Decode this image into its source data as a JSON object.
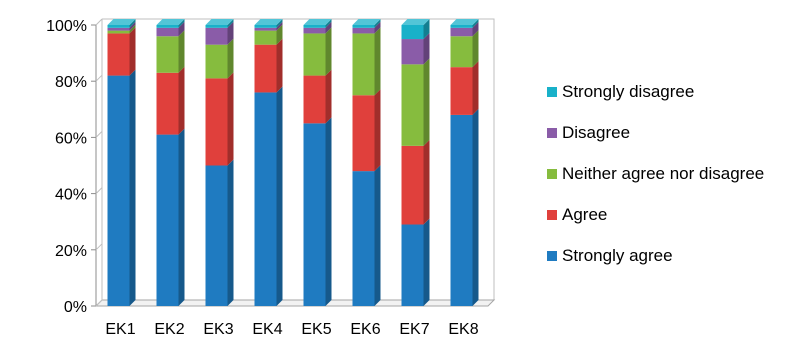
{
  "chart_data": {
    "type": "bar",
    "stacked": true,
    "style": "3d",
    "categories": [
      "EK1",
      "EK2",
      "EK3",
      "EK4",
      "EK5",
      "EK6",
      "EK7",
      "EK8"
    ],
    "series": [
      {
        "name": "Strongly agree",
        "color": "#1f7bc1",
        "values": [
          82,
          61,
          50,
          76,
          65,
          48,
          29,
          68
        ]
      },
      {
        "name": "Agree",
        "color": "#e0403c",
        "values": [
          15,
          22,
          31,
          17,
          17,
          27,
          28,
          17
        ]
      },
      {
        "name": "Neither agree nor disagree",
        "color": "#86bc3e",
        "values": [
          1,
          13,
          12,
          5,
          15,
          22,
          29,
          11
        ]
      },
      {
        "name": "Disagree",
        "color": "#8a5ca8",
        "values": [
          1,
          3,
          6,
          1,
          2,
          2,
          9,
          3
        ]
      },
      {
        "name": "Strongly disagree",
        "color": "#19b1c9",
        "values": [
          1,
          1,
          1,
          1,
          1,
          1,
          5,
          1
        ]
      }
    ],
    "y_ticks": [
      "0%",
      "20%",
      "40%",
      "60%",
      "80%",
      "100%"
    ],
    "ylim": [
      0,
      100
    ],
    "legend_position": "right",
    "legend_order": [
      "Strongly disagree",
      "Disagree",
      "Neither agree nor disagree",
      "Agree",
      "Strongly agree"
    ],
    "grid": false,
    "title": "",
    "xlabel": "",
    "ylabel": ""
  }
}
